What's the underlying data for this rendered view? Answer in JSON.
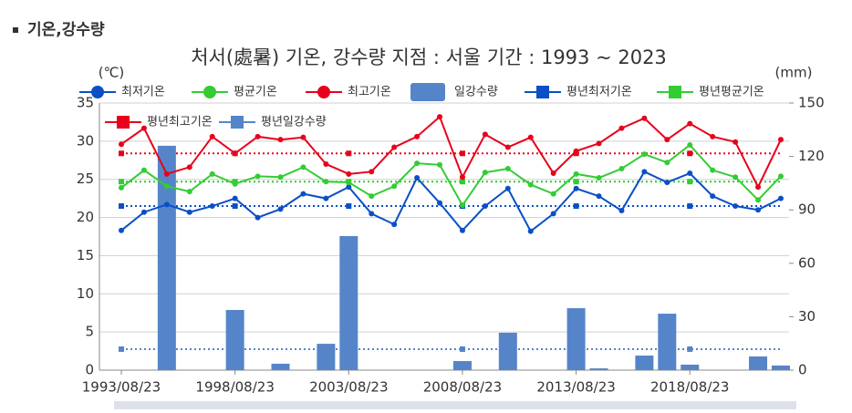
{
  "chart_data": {
    "type": "bar_line",
    "header": "기온,강수량",
    "title": "처서(處暑) 기온, 강수량  지점 : 서울 기간 : 1993 ~ 2023",
    "y_label": "(℃)",
    "y2_label": "(mm)",
    "categories": [
      "1993/08/23",
      null,
      null,
      null,
      null,
      "1998/08/23",
      null,
      null,
      null,
      null,
      "2003/08/23",
      null,
      null,
      null,
      null,
      "2008/08/23",
      null,
      null,
      null,
      null,
      "2013/08/23",
      null,
      null,
      null,
      null,
      "2018/08/23",
      null,
      null,
      null,
      null
    ],
    "ylim": [
      0,
      35
    ],
    "yticks": [
      0,
      5,
      10,
      15,
      20,
      25,
      30,
      35
    ],
    "y2lim": [
      0,
      150
    ],
    "y2ticks": [
      0,
      30,
      60,
      90,
      120,
      150
    ],
    "grid": true,
    "series": [
      {
        "name": "최저기온",
        "color": "#0a4fc7",
        "kind": "line",
        "values": [
          18.3,
          20.7,
          21.7,
          20.7,
          21.5,
          22.5,
          20.0,
          21.1,
          23.1,
          22.5,
          24.0,
          20.5,
          19.1,
          25.2,
          21.9,
          18.3,
          21.5,
          23.8,
          18.2,
          20.5,
          23.8,
          22.8,
          20.9,
          26.0,
          24.6,
          25.8,
          22.8,
          21.5,
          21.0,
          22.5
        ]
      },
      {
        "name": "평균기온",
        "color": "#33cc33",
        "kind": "line",
        "values": [
          23.9,
          26.2,
          24.1,
          23.4,
          25.7,
          24.4,
          25.4,
          25.3,
          26.6,
          24.7,
          24.6,
          22.8,
          24.1,
          27.1,
          26.9,
          21.6,
          25.9,
          26.4,
          24.3,
          23.1,
          25.7,
          25.2,
          26.4,
          28.3,
          27.2,
          29.5,
          26.2,
          25.3,
          22.3,
          25.4
        ]
      },
      {
        "name": "최고기온",
        "color": "#e8001c",
        "kind": "line",
        "values": [
          29.6,
          31.7,
          25.7,
          26.6,
          30.6,
          28.4,
          30.6,
          30.2,
          30.5,
          27.0,
          25.7,
          26.0,
          29.2,
          30.6,
          33.2,
          25.3,
          30.9,
          29.2,
          30.5,
          25.8,
          28.7,
          29.7,
          31.7,
          33.0,
          30.2,
          32.3,
          30.6,
          29.9,
          24.0,
          30.2
        ]
      },
      {
        "name": "일강수량",
        "color": "#5585c8",
        "kind": "bar",
        "axis": "y2",
        "values": [
          0,
          0,
          126,
          0,
          0,
          33.8,
          0,
          3.6,
          0,
          14.8,
          75.3,
          0,
          0,
          0,
          0,
          5.1,
          0,
          21,
          0,
          0,
          34.8,
          1,
          0,
          8.2,
          31.7,
          3.1,
          0,
          0,
          7.7,
          2.6
        ]
      }
    ],
    "normals": [
      {
        "name": "평년최저기온",
        "color": "#0a4fc7",
        "value": 21.5
      },
      {
        "name": "평년평균기온",
        "color": "#33cc33",
        "value": 24.7
      },
      {
        "name": "평년최고기온",
        "color": "#e8001c",
        "value": 28.4
      },
      {
        "name": "평년일강수량",
        "color": "#5585c8",
        "value": 11.8,
        "axis": "y2"
      }
    ]
  }
}
